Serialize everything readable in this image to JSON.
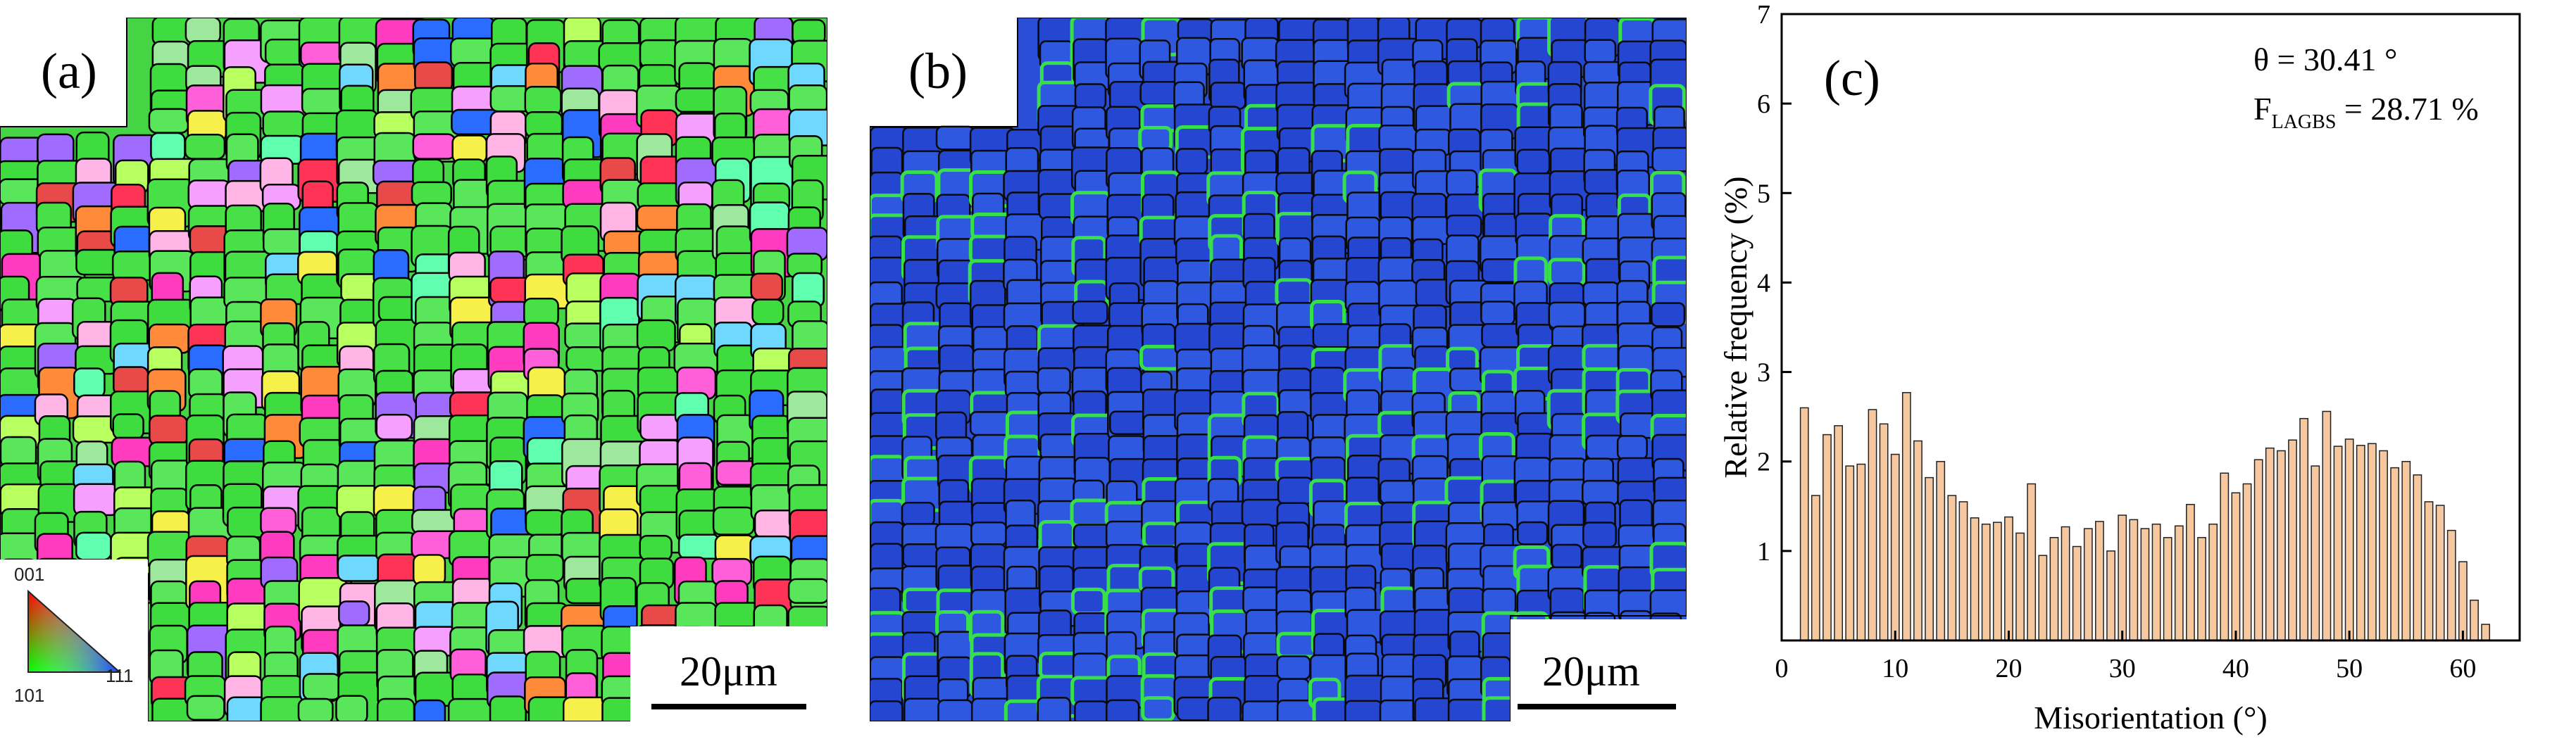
{
  "panels": {
    "a": {
      "label": "(a)",
      "scale_bar": "20μm",
      "key_labels": {
        "top": "001",
        "left": "101",
        "right": "111"
      }
    },
    "b": {
      "label": "(b)",
      "scale_bar": "20μm"
    },
    "c": {
      "label": "(c)",
      "annotation_theta": "θ = 30.41 °",
      "annotation_f_prefix": "F",
      "annotation_f_sub": "LAGBS",
      "annotation_f_value": " = 28.71 %"
    }
  },
  "colors": {
    "bar_fill": "#f6c8a0",
    "bar_stroke": "#222222",
    "kam_background": "#2a4fd6",
    "kam_highlight": "#37e04a"
  },
  "chart_data": {
    "type": "bar",
    "xlabel": "Misorientation (°)",
    "ylabel": "Relative frequency (%)",
    "xlim": [
      0,
      65
    ],
    "ylim": [
      0,
      7
    ],
    "xticks": [
      0,
      10,
      20,
      30,
      40,
      50,
      60
    ],
    "yticks": [
      1,
      2,
      3,
      4,
      5,
      6,
      7
    ],
    "bin_width": 1,
    "x": [
      2,
      3,
      4,
      5,
      6,
      7,
      8,
      9,
      10,
      11,
      12,
      13,
      14,
      15,
      16,
      17,
      18,
      19,
      20,
      21,
      22,
      23,
      24,
      25,
      26,
      27,
      28,
      29,
      30,
      31,
      32,
      33,
      34,
      35,
      36,
      37,
      38,
      39,
      40,
      41,
      42,
      43,
      44,
      45,
      46,
      47,
      48,
      49,
      50,
      51,
      52,
      53,
      54,
      55,
      56,
      57,
      58,
      59,
      60,
      61,
      62
    ],
    "values": [
      2.6,
      1.62,
      2.3,
      2.4,
      1.95,
      1.97,
      2.58,
      2.42,
      2.08,
      2.77,
      2.23,
      1.82,
      2.0,
      1.62,
      1.55,
      1.37,
      1.3,
      1.32,
      1.38,
      1.2,
      1.75,
      0.95,
      1.15,
      1.27,
      1.05,
      1.25,
      1.33,
      1.0,
      1.4,
      1.35,
      1.25,
      1.3,
      1.15,
      1.28,
      1.52,
      1.15,
      1.3,
      1.87,
      1.65,
      1.75,
      2.02,
      2.15,
      2.12,
      2.24,
      2.48,
      1.95,
      2.56,
      2.17,
      2.25,
      2.18,
      2.2,
      2.12,
      1.93,
      2.0,
      1.85,
      1.55,
      1.51,
      1.23,
      0.88,
      0.45,
      0.18
    ]
  }
}
